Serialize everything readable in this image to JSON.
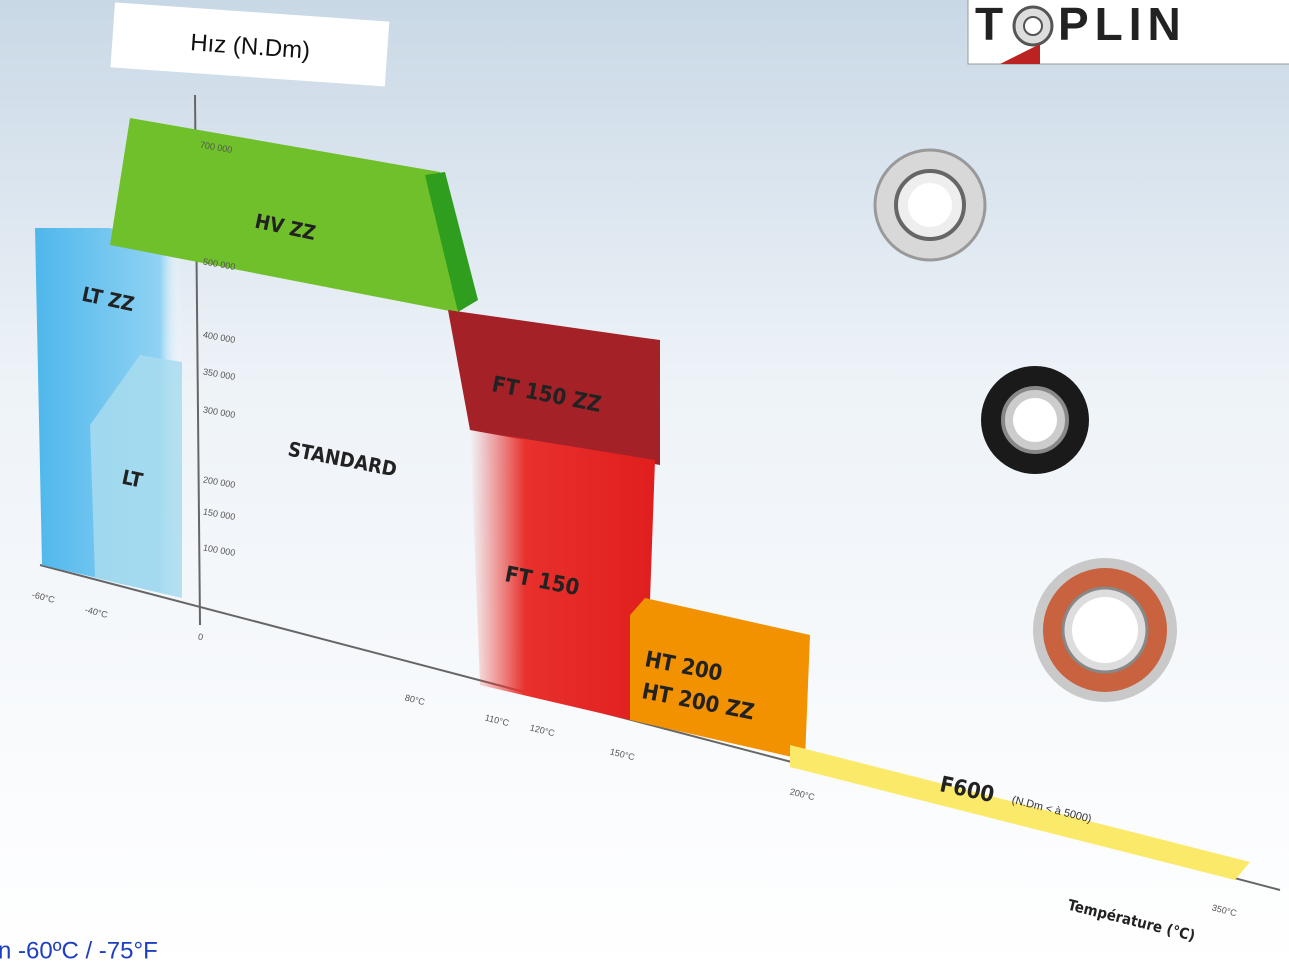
{
  "header": {
    "title": "Hız (N.Dm)",
    "logo": "T",
    "logo_rest": "PLIN"
  },
  "y_axis": {
    "ticks": [
      "700 000",
      "500 000",
      "400 000",
      "350 000",
      "300 000",
      "200 000",
      "150 000",
      "100 000",
      "0"
    ]
  },
  "x_axis": {
    "label": "Température (°C)",
    "ticks": [
      "-60°C",
      "-40°C",
      "80°C",
      "110°C",
      "120°C",
      "150°C",
      "200°C",
      "350°C"
    ]
  },
  "zones": [
    {
      "label": "HV ZZ"
    },
    {
      "label": "LT ZZ"
    },
    {
      "label": "LT"
    },
    {
      "label": "STANDARD"
    },
    {
      "label": "FT 150 ZZ"
    },
    {
      "label": "FT 150"
    },
    {
      "label": "HT 200"
    },
    {
      "label": "HT 200 ZZ"
    },
    {
      "label": "F600",
      "note": "(N.Dm < à 5000)"
    }
  ],
  "footer": {
    "text": "n  -60ºC / -75°F"
  }
}
